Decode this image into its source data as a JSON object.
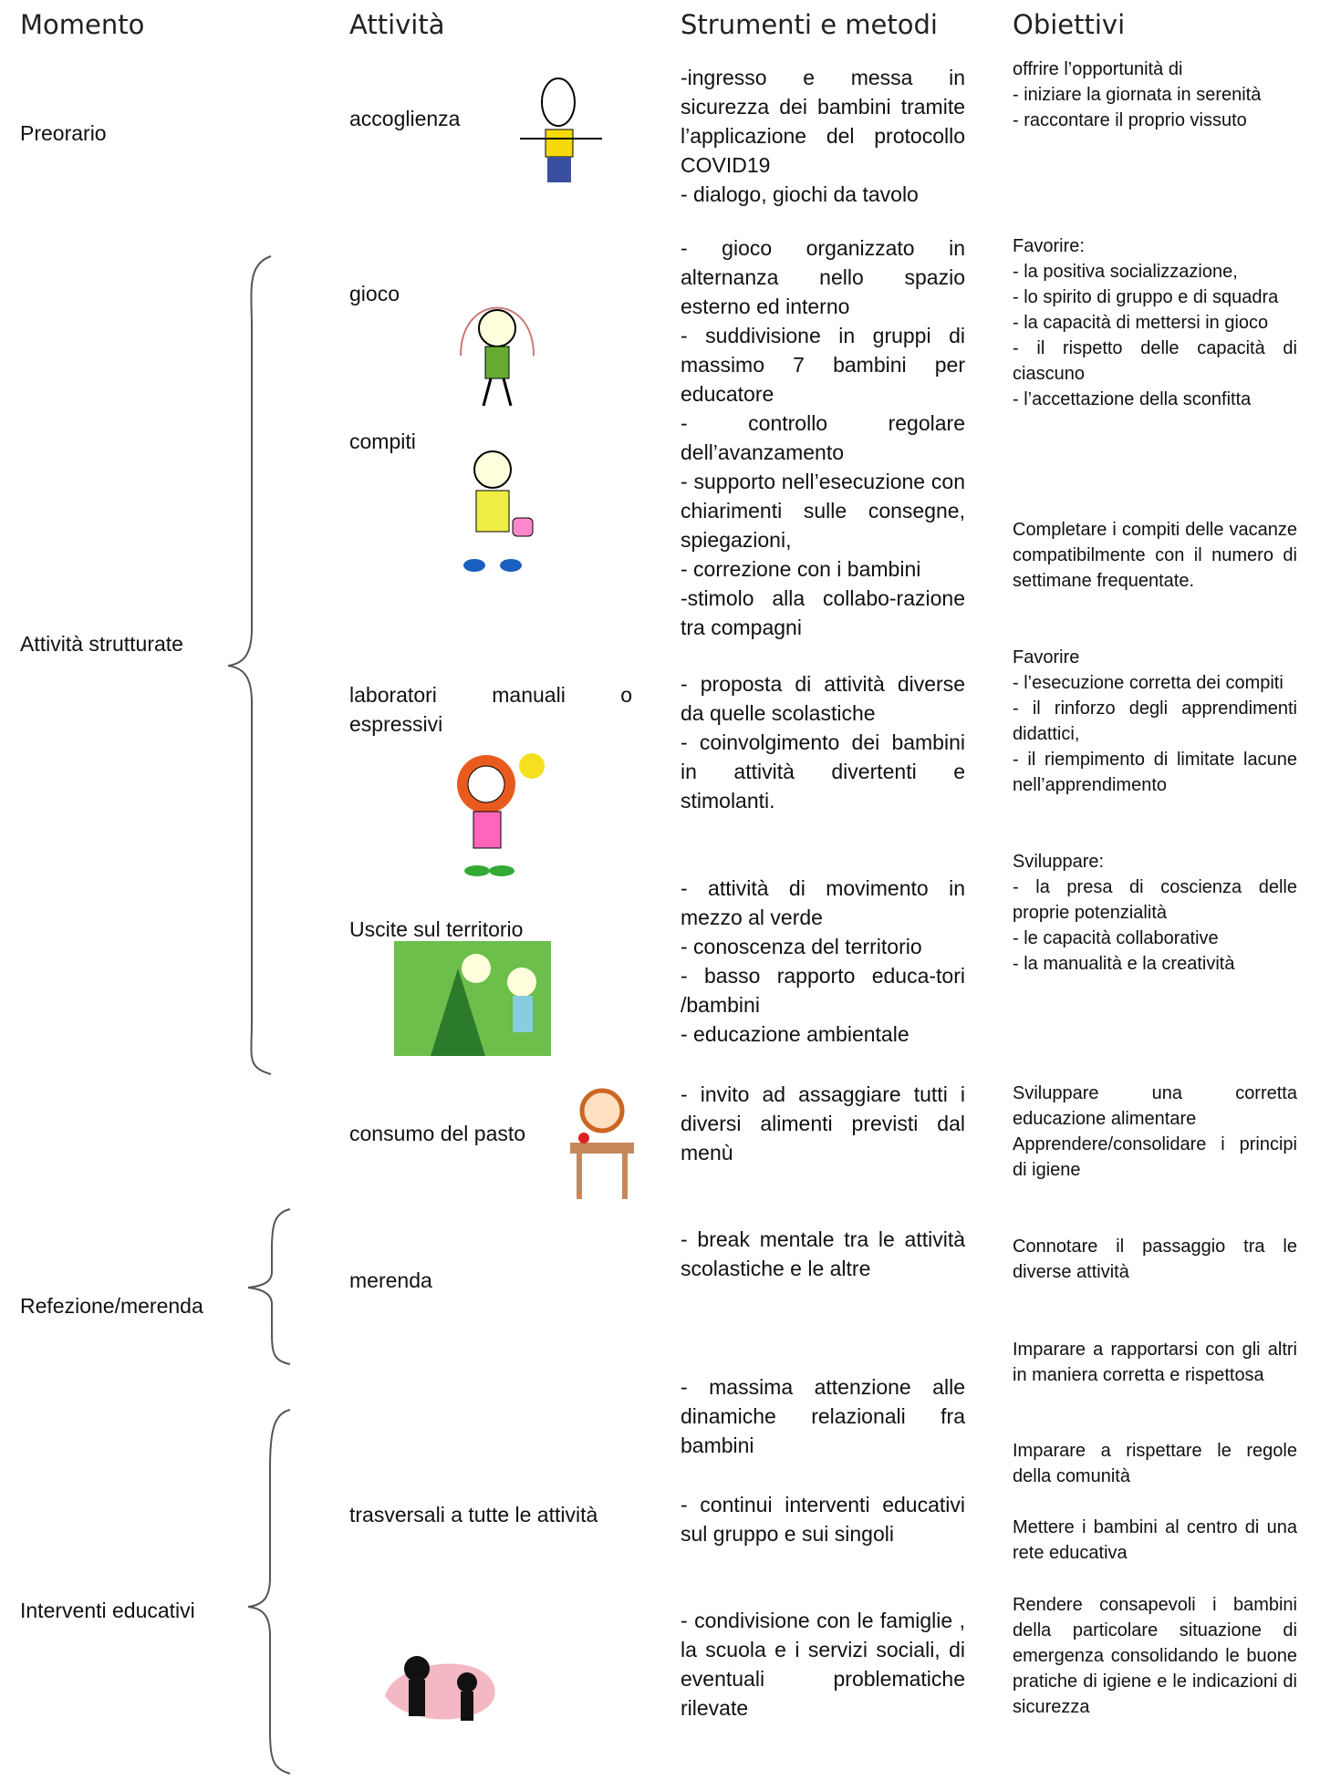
{
  "header": {
    "momento": "Momento",
    "attivita": "Attività",
    "strumenti": "Strumenti e metodi",
    "obiettivi": "Obiettivi"
  },
  "momenti": [
    "Preorario",
    "Attività strutturate",
    "Refezione/merenda",
    "Interventi educativi"
  ],
  "attivita": [
    "accoglienza",
    "gioco",
    "compiti",
    "laboratori manuali o espressivi",
    "Uscite sul territorio",
    "consumo del pasto",
    "merenda",
    "trasversali a tutte le attività"
  ],
  "strumenti": [
    [
      "-ingresso e messa in sicurezza dei bambini tramite l’applicazione del protocollo COVID19",
      "- dialogo, giochi da tavolo"
    ],
    [
      "- gioco organizzato in alternanza nello spazio esterno ed interno",
      "- suddivisione in gruppi di massimo 7 bambini per educatore",
      "- controllo regolare dell’avanzamento",
      "- supporto nell’esecuzione con chiarimenti sulle consegne, spiegazioni,",
      "- correzione con i bambini",
      "-stimolo alla collabo-razione tra compagni"
    ],
    [
      "- proposta di attività diverse da quelle scolastiche",
      "- coinvolgimento dei bambini in attività divertenti e stimolanti."
    ],
    [
      "- attività di movimento in mezzo al verde",
      "- conoscenza del territorio",
      "- basso rapporto educa-tori /bambini",
      "- educazione ambientale"
    ],
    [
      "- invito ad assaggiare tutti i diversi alimenti previsti dal menù"
    ],
    [
      "- break mentale tra le attività scolastiche e le altre"
    ],
    [
      "- massima attenzione alle dinamiche relazionali fra bambini"
    ],
    [
      "- continui interventi educativi sul gruppo e sui singoli"
    ],
    [
      "- condivisione con le famiglie , la scuola e i servizi sociali, di eventuali problematiche rilevate"
    ]
  ],
  "obiettivi": [
    [
      "offrire l’opportunità di",
      "- iniziare la giornata in serenità",
      "- raccontare il proprio vissuto"
    ],
    [
      "Favorire:",
      "- la positiva socializzazione,",
      "- lo spirito di gruppo e di squadra",
      "- la capacità di mettersi in gioco",
      "- il rispetto delle capacità di ciascuno",
      "- l’accettazione della sconfitta"
    ],
    [
      "Completare i compiti delle vacanze compatibilmente con il numero di settimane frequentate."
    ],
    [
      "Favorire",
      "- l’esecuzione corretta dei compiti",
      "- il rinforzo degli apprendimenti didattici,",
      "- il riempimento di limitate lacune nell’apprendimento"
    ],
    [
      "Sviluppare:",
      "- la presa di coscienza delle proprie potenzialità",
      "- le capacità collaborative",
      "- la manualità e la creatività"
    ],
    [
      "Sviluppare una corretta educazione alimentare",
      "Apprendere/consolidare i principi di igiene"
    ],
    [
      "Connotare il passaggio tra le diverse attività"
    ],
    [
      "Imparare a rapportarsi con gli altri in maniera corretta e rispettosa"
    ],
    [
      "Imparare a rispettare le regole della comunità"
    ],
    [
      "Mettere i bambini al centro di una rete educativa"
    ],
    [
      "Rendere consapevoli i bambini della particolare situazione di emergenza consolidando le buone pratiche di igiene e le indicazioni di sicurezza"
    ]
  ]
}
